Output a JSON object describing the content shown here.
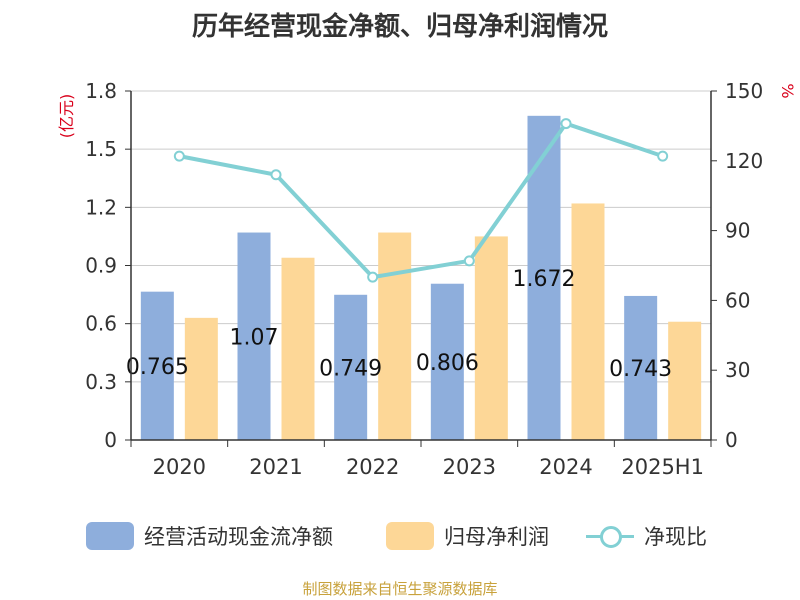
{
  "chart_data": {
    "type": "bar",
    "title": "历年经营现金净额、归母净利润情况",
    "categories": [
      "2020",
      "2021",
      "2022",
      "2023",
      "2024",
      "2025H1"
    ],
    "y_left": {
      "label": "(亿元)",
      "ylim": [
        0,
        1.8
      ],
      "ticks": [
        0,
        0.3,
        0.6,
        0.9,
        1.2,
        1.5,
        1.8
      ],
      "tick_labels": [
        "0",
        "0.3",
        "0.6",
        "0.9",
        "1.2",
        "1.5",
        "1.8"
      ]
    },
    "y_right": {
      "label": "%",
      "ylim": [
        0,
        150
      ],
      "ticks": [
        0,
        30,
        60,
        90,
        120,
        150
      ],
      "tick_labels": [
        "0",
        "30",
        "60",
        "90",
        "120",
        "150"
      ]
    },
    "series": [
      {
        "name": "经营活动现金流净额",
        "type": "bar",
        "axis": "left",
        "color": "#8eaedc",
        "values": [
          0.765,
          1.07,
          0.749,
          0.806,
          1.672,
          0.743
        ],
        "labels": [
          "0.765",
          "1.07",
          "0.749",
          "0.806",
          "1.672",
          "0.743"
        ]
      },
      {
        "name": "归母净利润",
        "type": "bar",
        "axis": "left",
        "color": "#fdd797",
        "values": [
          0.63,
          0.94,
          1.07,
          1.05,
          1.22,
          0.61
        ]
      },
      {
        "name": "净现比",
        "type": "line",
        "axis": "right",
        "color": "#82d0d4",
        "values": [
          122,
          114,
          70,
          77,
          136,
          122
        ]
      }
    ],
    "grid": true,
    "legend": "bottom"
  },
  "source": "制图数据来自恒生聚源数据库"
}
